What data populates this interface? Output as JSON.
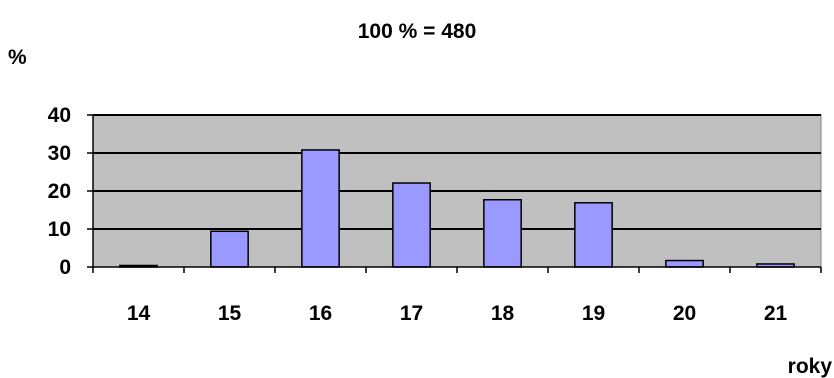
{
  "chart_data": {
    "type": "bar",
    "title": "100 % = 480",
    "ylabel": "%",
    "xlabel": "roky",
    "categories": [
      "14",
      "15",
      "16",
      "17",
      "18",
      "19",
      "20",
      "21"
    ],
    "values": [
      0.4,
      9.4,
      30.8,
      22.1,
      17.7,
      16.9,
      1.7,
      0.8
    ],
    "ylim": [
      0,
      40
    ],
    "yticks": [
      "0",
      "10",
      "20",
      "30",
      "40"
    ],
    "grid": true,
    "legend": "none",
    "colors": {
      "bar_fill": "#9999ff",
      "plot_background": "#c0c0c0",
      "axis": "#000000"
    }
  }
}
